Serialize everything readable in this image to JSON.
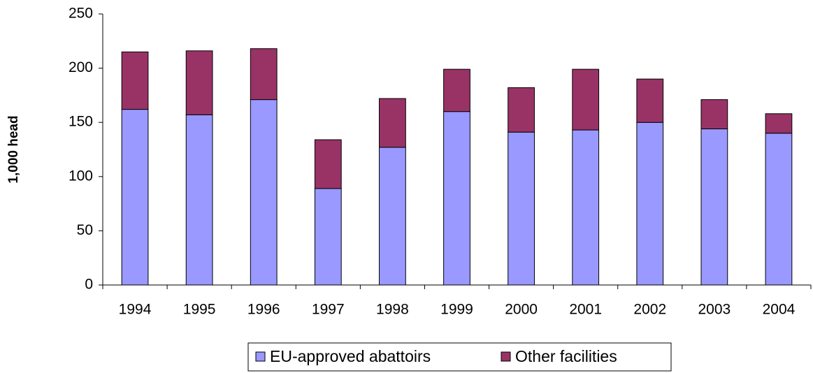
{
  "chart_data": {
    "type": "stacked_bar",
    "y_label": "1,000 head",
    "categories": [
      "1994",
      "1995",
      "1996",
      "1997",
      "1998",
      "1999",
      "2000",
      "2001",
      "2002",
      "2003",
      "2004"
    ],
    "series": [
      {
        "name": "EU-approved abattoirs",
        "color": "#9999ff",
        "values": [
          162,
          157,
          171,
          89,
          127,
          160,
          141,
          143,
          150,
          144,
          140
        ]
      },
      {
        "name": "Other facilities",
        "color": "#993366",
        "values": [
          53,
          59,
          47,
          45,
          45,
          39,
          41,
          56,
          40,
          27,
          18
        ]
      }
    ],
    "ylim": [
      0,
      250
    ],
    "yticks": [
      0,
      50,
      100,
      150,
      200,
      250
    ],
    "grid": false
  }
}
